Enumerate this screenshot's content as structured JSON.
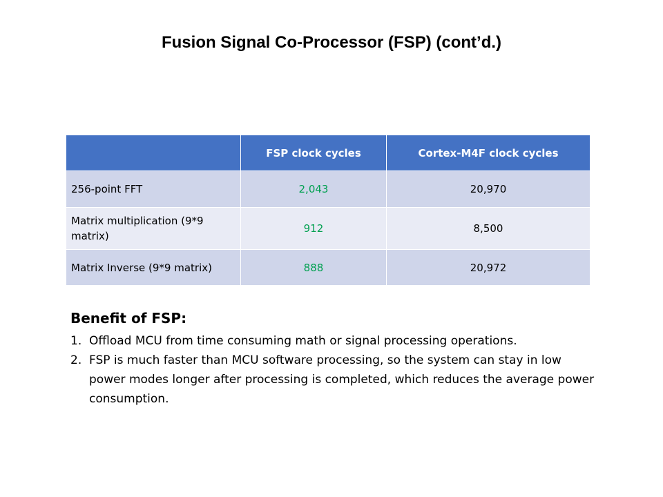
{
  "slide": {
    "title": "Fusion Signal Co-Processor (FSP) (cont’d.)"
  },
  "table": {
    "headers": [
      "",
      "FSP clock cycles",
      "Cortex-M4F clock cycles"
    ],
    "rows": [
      {
        "label": "256-point FFT",
        "fsp": "2,043",
        "m4f": "20,970"
      },
      {
        "label": "Matrix multiplication (9*9 matrix)",
        "fsp": "912",
        "m4f": "8,500"
      },
      {
        "label": "Matrix Inverse (9*9 matrix)",
        "fsp": "888",
        "m4f": "20,972"
      }
    ],
    "colors": {
      "header_bg": "#4472c4",
      "row_odd_bg": "#cfd5ea",
      "row_even_bg": "#e9ebf5",
      "fsp_value": "#00a050"
    }
  },
  "benefits": {
    "heading": "Benefit of FSP:",
    "items": [
      {
        "num": "1.",
        "text": "Offload MCU from time consuming math or signal processing operations."
      },
      {
        "num": "2.",
        "text": "FSP is much faster than MCU software processing, so the system can stay in low power modes longer after processing is completed, which reduces the average power consumption."
      }
    ]
  }
}
